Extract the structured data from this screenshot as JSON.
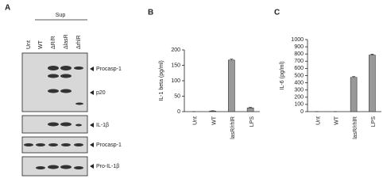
{
  "blot": {
    "panel": "A",
    "group": "Sup",
    "lanes": [
      "Unt",
      "WT",
      "ΔR/R",
      "ΔlasR",
      "ΔrhlR"
    ],
    "bands": [
      "Procasp-1",
      "p20",
      "IL-1β",
      "Procasp-1",
      "Pro-IL-1β"
    ]
  },
  "chart_data": [
    {
      "type": "bar",
      "panel": "B",
      "ylabel": "IL-1 beta (pg/ml)",
      "categories": [
        "Unt",
        "WT",
        "lasR/rhlR",
        "LPS"
      ],
      "values": [
        0,
        2,
        167,
        12
      ],
      "errors": [
        0,
        1,
        3,
        2
      ],
      "color": "#999999",
      "ylim": [
        0,
        200
      ],
      "yticks": [
        0,
        50,
        100,
        150,
        200
      ]
    },
    {
      "type": "bar",
      "panel": "C",
      "ylabel": "IL-6 (pg/ml)",
      "categories": [
        "Unt",
        "WT",
        "lasR/rhlR",
        "LPS"
      ],
      "values": [
        0,
        0,
        475,
        785
      ],
      "errors": [
        0,
        0,
        12,
        12
      ],
      "color": "#999999",
      "ylim": [
        0,
        1000
      ],
      "yticks": [
        0,
        100,
        200,
        300,
        400,
        500,
        600,
        700,
        800,
        900,
        1000
      ]
    }
  ]
}
